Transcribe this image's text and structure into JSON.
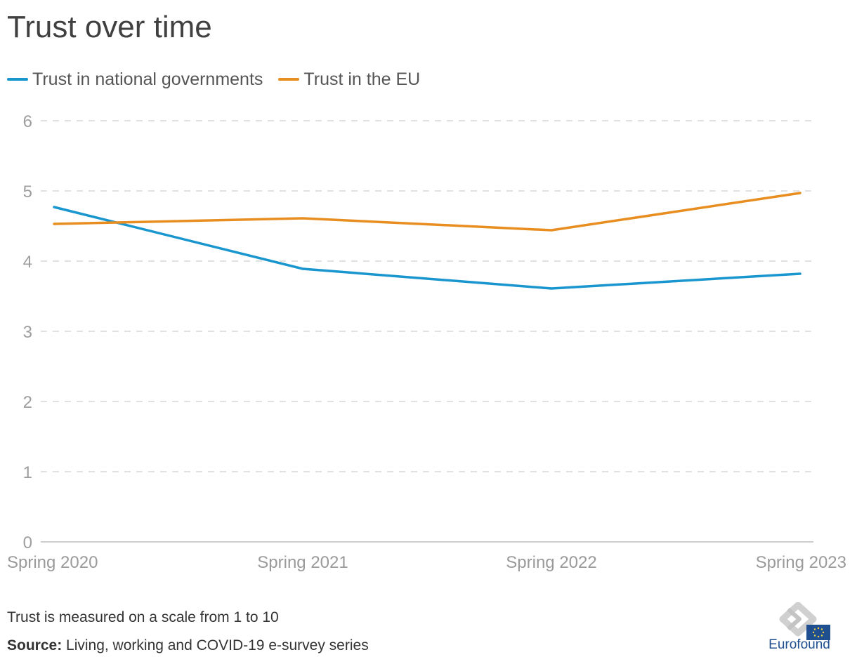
{
  "title": "Trust over time",
  "legend": [
    {
      "label": "Trust in national governments",
      "color": "#1a96cf"
    },
    {
      "label": "Trust in the EU",
      "color": "#e88e21"
    }
  ],
  "chart_data": {
    "type": "line",
    "categories": [
      "Spring 2020",
      "Spring 2021",
      "Spring 2022",
      "Spring 2023"
    ],
    "series": [
      {
        "name": "Trust in national governments",
        "color": "#1a96cf",
        "values": [
          4.77,
          3.89,
          3.61,
          3.82
        ]
      },
      {
        "name": "Trust in the EU",
        "color": "#e88e21",
        "values": [
          4.53,
          4.61,
          4.44,
          4.97
        ]
      }
    ],
    "ylim": [
      0,
      6
    ],
    "yticks": [
      0,
      1,
      2,
      3,
      4,
      5,
      6
    ],
    "grid": true,
    "legend_position": "top-left"
  },
  "footer": {
    "note": "Trust is measured on a scale from 1 to 10",
    "source_label": "Source:",
    "source_text": " Living, working and COVID-19 e-survey series"
  },
  "logo": {
    "text": "Eurofound"
  }
}
